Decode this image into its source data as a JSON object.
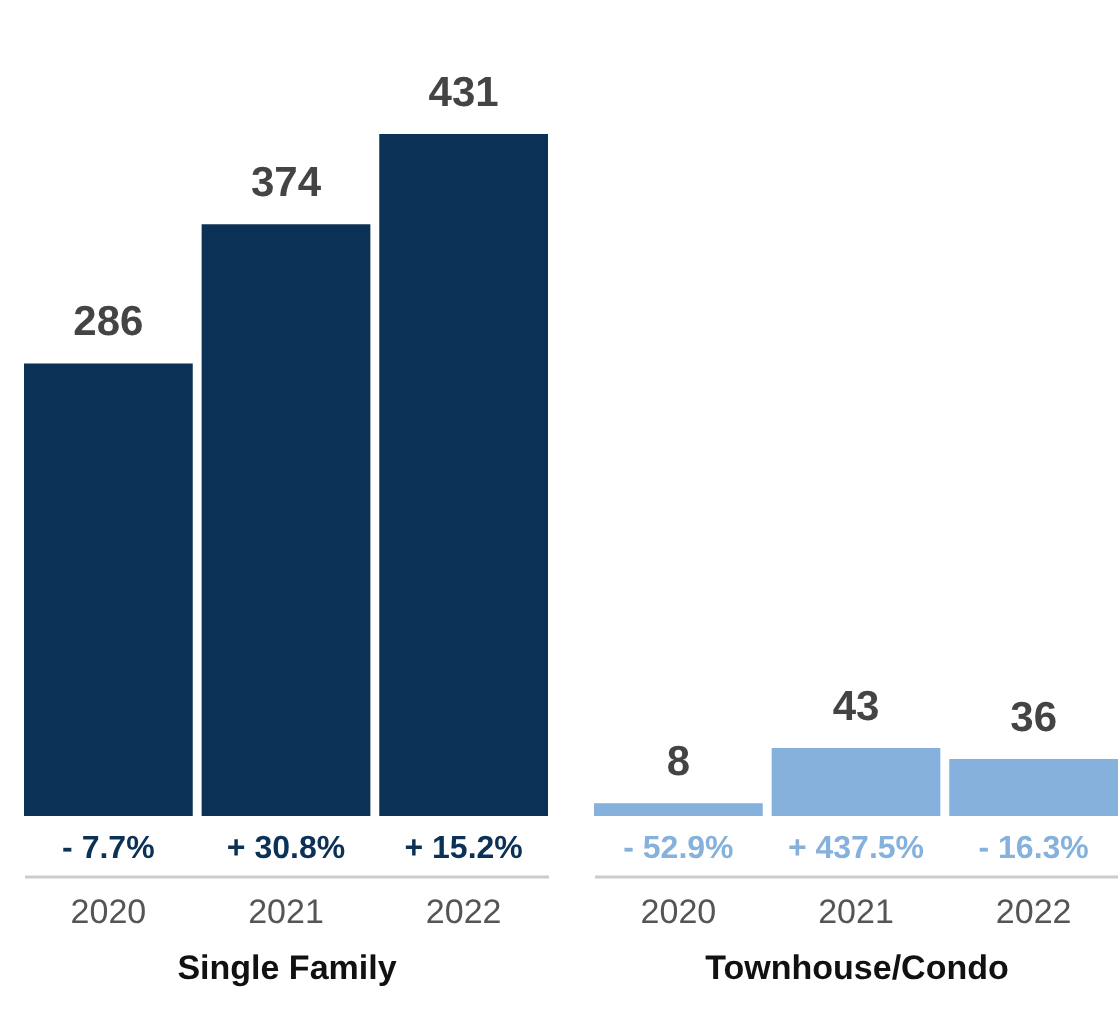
{
  "chart_data": [
    {
      "type": "bar",
      "categories": [
        "2020",
        "2021",
        "2022"
      ],
      "values": [
        286,
        374,
        431
      ],
      "color": "#0b3157",
      "xlabel": "Single Family",
      "data_labels": true,
      "tick_labels": "x",
      "annotations": [
        {
          "text": "- 7.7%",
          "x": "2020",
          "y": 0
        },
        {
          "text": "+ 30.8%",
          "x": "2021",
          "y": 0
        },
        {
          "text": "+ 15.2%",
          "x": "2022",
          "y": 0
        }
      ]
    },
    {
      "type": "bar",
      "categories": [
        "2020",
        "2021",
        "2022"
      ],
      "values": [
        8,
        43,
        36
      ],
      "color": "#85b1dc",
      "xlabel": "Townhouse/Condo",
      "data_labels": true,
      "tick_labels": "x",
      "annotations": [
        {
          "text": "- 52.9%",
          "x": "2020",
          "y": 0
        },
        {
          "text": "+ 437.5%",
          "x": "2021",
          "y": 0
        },
        {
          "text": "- 16.3%",
          "x": "2022",
          "y": 0
        }
      ]
    }
  ]
}
